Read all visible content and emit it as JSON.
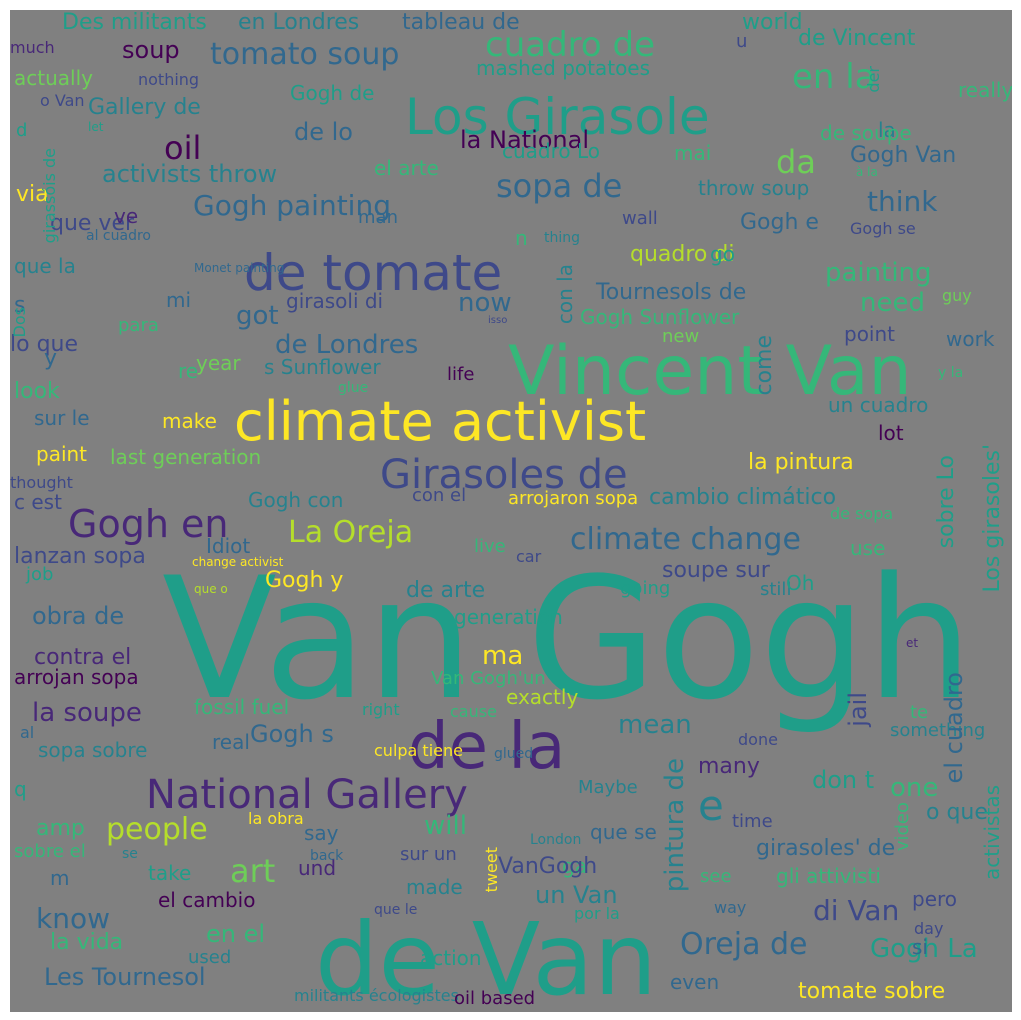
{
  "image": {
    "title": "",
    "background_color": "#808080",
    "palette": [
      "#440154",
      "#482878",
      "#3e4989",
      "#31688e",
      "#26828e",
      "#1f9e89",
      "#35b779",
      "#6ece58",
      "#b5de2b",
      "#fde725"
    ]
  },
  "words": [
    {
      "text": "Van Gogh",
      "color": "#1f9e89",
      "orient": "h"
    },
    {
      "text": "de Van",
      "color": "#1f9e89",
      "orient": "h"
    },
    {
      "text": "Vincent Van",
      "color": "#35b779",
      "orient": "h"
    },
    {
      "text": "climate activist",
      "color": "#fde725",
      "orient": "h"
    },
    {
      "text": "Los Girasole",
      "color": "#1f9e89",
      "orient": "h"
    },
    {
      "text": "de tomate",
      "color": "#3e4989",
      "orient": "h"
    },
    {
      "text": "Girasoles de",
      "color": "#3e4989",
      "orient": "h"
    },
    {
      "text": "de la",
      "color": "#482878",
      "orient": "h"
    },
    {
      "text": "National Gallery",
      "color": "#482878",
      "orient": "h"
    },
    {
      "text": "Gogh en",
      "color": "#482878",
      "orient": "h"
    },
    {
      "text": "La Oreja",
      "color": "#b5de2b",
      "orient": "h"
    },
    {
      "text": "climate change",
      "color": "#31688e",
      "orient": "h"
    },
    {
      "text": "cuadro de",
      "color": "#35b779",
      "orient": "h"
    },
    {
      "text": "tomato soup",
      "color": "#31688e",
      "orient": "h"
    },
    {
      "text": "sopa de",
      "color": "#31688e",
      "orient": "h"
    },
    {
      "text": "en la",
      "color": "#35b779",
      "orient": "h"
    },
    {
      "text": "people",
      "color": "#b5de2b",
      "orient": "h"
    },
    {
      "text": "Oreja de",
      "color": "#31688e",
      "orient": "h"
    },
    {
      "text": "Gogh painting",
      "color": "#31688e",
      "orient": "h"
    },
    {
      "text": "de Londres",
      "color": "#31688e",
      "orient": "h"
    },
    {
      "text": "think",
      "color": "#31688e",
      "orient": "h"
    },
    {
      "text": "painting",
      "color": "#35b779",
      "orient": "h"
    },
    {
      "text": "need",
      "color": "#35b779",
      "orient": "h"
    },
    {
      "text": "oil",
      "color": "#440154",
      "orient": "h"
    },
    {
      "text": "da",
      "color": "#6ece58",
      "orient": "h"
    },
    {
      "text": "Les Tournesol",
      "color": "#31688e",
      "orient": "h"
    },
    {
      "text": "di Van",
      "color": "#3e4989",
      "orient": "h"
    },
    {
      "text": "art",
      "color": "#6ece58",
      "orient": "h"
    },
    {
      "text": "know",
      "color": "#31688e",
      "orient": "h"
    },
    {
      "text": "soup",
      "color": "#440154",
      "orient": "h"
    },
    {
      "text": "de lo",
      "color": "#31688e",
      "orient": "h"
    },
    {
      "text": "la National",
      "color": "#440154",
      "orient": "h"
    },
    {
      "text": "activists throw",
      "color": "#26828e",
      "orient": "h"
    },
    {
      "text": "Gallery de",
      "color": "#26828e",
      "orient": "h"
    },
    {
      "text": "Gogh Van",
      "color": "#31688e",
      "orient": "h"
    },
    {
      "text": "la pintura",
      "color": "#fde725",
      "orient": "h"
    },
    {
      "text": "cambio climático",
      "color": "#26828e",
      "orient": "h"
    },
    {
      "text": "Tournesols de",
      "color": "#31688e",
      "orient": "h"
    },
    {
      "text": "Gogh e",
      "color": "#31688e",
      "orient": "h"
    },
    {
      "text": "Gogh y",
      "color": "#fde725",
      "orient": "h"
    },
    {
      "text": "Gogh s",
      "color": "#31688e",
      "orient": "h"
    },
    {
      "text": "un Van",
      "color": "#26828e",
      "orient": "h"
    },
    {
      "text": "one",
      "color": "#35b779",
      "orient": "h"
    },
    {
      "text": "ma",
      "color": "#fde725",
      "orient": "h"
    },
    {
      "text": "e",
      "color": "#26828e",
      "orient": "h"
    },
    {
      "text": "la soupe",
      "color": "#482878",
      "orient": "h"
    },
    {
      "text": "obra de",
      "color": "#31688e",
      "orient": "h"
    },
    {
      "text": "now",
      "color": "#31688e",
      "orient": "h"
    },
    {
      "text": "will",
      "color": "#35b779",
      "orient": "h"
    },
    {
      "text": "en el",
      "color": "#35b779",
      "orient": "h"
    },
    {
      "text": "girasoles' de",
      "color": "#31688e",
      "orient": "h"
    },
    {
      "text": "soupe sur",
      "color": "#3e4989",
      "orient": "h"
    },
    {
      "text": "de arte",
      "color": "#26828e",
      "orient": "h"
    },
    {
      "text": "tomate sobre",
      "color": "#fde725",
      "orient": "h"
    },
    {
      "text": "el cambio",
      "color": "#440154",
      "orient": "h"
    },
    {
      "text": "gli attivisti",
      "color": "#35b779",
      "orient": "h"
    },
    {
      "text": "Gogh Sunflower",
      "color": "#35b779",
      "orient": "h"
    },
    {
      "text": "s Sunflower",
      "color": "#26828e",
      "orient": "h"
    },
    {
      "text": "last generation",
      "color": "#6ece58",
      "orient": "h"
    },
    {
      "text": "lanzan sopa",
      "color": "#3e4989",
      "orient": "h"
    },
    {
      "text": "contra el",
      "color": "#482878",
      "orient": "h"
    },
    {
      "text": "arrojan sopa",
      "color": "#440154",
      "orient": "h"
    },
    {
      "text": "sopa sobre",
      "color": "#26828e",
      "orient": "h"
    },
    {
      "text": "fossil fuel",
      "color": "#35b779",
      "orient": "h"
    },
    {
      "text": "un cuadro",
      "color": "#26828e",
      "orient": "h"
    },
    {
      "text": "con el",
      "color": "#3e4989",
      "orient": "h"
    },
    {
      "text": "arrojaron sopa",
      "color": "#fde725",
      "orient": "h"
    },
    {
      "text": "Idiot",
      "color": "#31688e",
      "orient": "h"
    },
    {
      "text": "mashed potatoes",
      "color": "#1f9e89",
      "orient": "h"
    },
    {
      "text": "de Vincent",
      "color": "#1f9e89",
      "orient": "h"
    },
    {
      "text": "throw soup",
      "color": "#26828e",
      "orient": "h"
    },
    {
      "text": "cuadro Lo",
      "color": "#1f9e89",
      "orient": "h"
    },
    {
      "text": "el arte",
      "color": "#35b779",
      "orient": "h"
    },
    {
      "text": "la",
      "color": "#26828e",
      "orient": "h"
    },
    {
      "text": "really",
      "color": "#35b779",
      "orient": "h"
    },
    {
      "text": "mai",
      "color": "#35b779",
      "orient": "h"
    },
    {
      "text": "via",
      "color": "#fde725",
      "orient": "h"
    },
    {
      "text": "lo que",
      "color": "#3e4989",
      "orient": "h"
    },
    {
      "text": "y",
      "color": "#31688e",
      "orient": "h"
    },
    {
      "text": "got",
      "color": "#31688e",
      "orient": "h"
    },
    {
      "text": "s",
      "color": "#31688e",
      "orient": "h"
    },
    {
      "text": "que la",
      "color": "#26828e",
      "orient": "h"
    },
    {
      "text": "girasoli di",
      "color": "#3e4989",
      "orient": "h"
    },
    {
      "text": "que ver",
      "color": "#3e4989",
      "orient": "h"
    },
    {
      "text": "ve",
      "color": "#482878",
      "orient": "h"
    },
    {
      "text": "look",
      "color": "#35b779",
      "orient": "h"
    },
    {
      "text": "sur le",
      "color": "#31688e",
      "orient": "h"
    },
    {
      "text": "paint",
      "color": "#fde725",
      "orient": "h"
    },
    {
      "text": "make",
      "color": "#fde725",
      "orient": "h"
    },
    {
      "text": "year",
      "color": "#6ece58",
      "orient": "h"
    },
    {
      "text": "re",
      "color": "#35b779",
      "orient": "h"
    },
    {
      "text": "mi",
      "color": "#31688e",
      "orient": "h"
    },
    {
      "text": "para",
      "color": "#35b779",
      "orient": "h"
    },
    {
      "text": "quadro di",
      "color": "#b5de2b",
      "orient": "h"
    },
    {
      "text": "go",
      "color": "#1f9e89",
      "orient": "h"
    },
    {
      "text": "point",
      "color": "#3e4989",
      "orient": "h"
    },
    {
      "text": "work",
      "color": "#31688e",
      "orient": "h"
    },
    {
      "text": "lot",
      "color": "#440154",
      "orient": "h"
    },
    {
      "text": "use",
      "color": "#35b779",
      "orient": "h"
    },
    {
      "text": "life",
      "color": "#440154",
      "orient": "h"
    },
    {
      "text": "new",
      "color": "#6ece58",
      "orient": "h"
    },
    {
      "text": "live",
      "color": "#35b779",
      "orient": "h"
    },
    {
      "text": "car",
      "color": "#3e4989",
      "orient": "h"
    },
    {
      "text": "Gogh con",
      "color": "#26828e",
      "orient": "h"
    },
    {
      "text": "c est",
      "color": "#3e4989",
      "orient": "h"
    },
    {
      "text": "job",
      "color": "#1f9e89",
      "orient": "h"
    },
    {
      "text": "generation",
      "color": "#1f9e89",
      "orient": "h"
    },
    {
      "text": "going",
      "color": "#1f9e89",
      "orient": "h"
    },
    {
      "text": "still",
      "color": "#26828e",
      "orient": "h"
    },
    {
      "text": "Oh",
      "color": "#1f9e89",
      "orient": "h"
    },
    {
      "text": "de sopa",
      "color": "#35b779",
      "orient": "h"
    },
    {
      "text": "Van Gogh'un",
      "color": "#35b779",
      "orient": "h"
    },
    {
      "text": "exactly",
      "color": "#b5de2b",
      "orient": "h"
    },
    {
      "text": "mean",
      "color": "#26828e",
      "orient": "h"
    },
    {
      "text": "right",
      "color": "#1f9e89",
      "orient": "h"
    },
    {
      "text": "cause",
      "color": "#35b779",
      "orient": "h"
    },
    {
      "text": "real",
      "color": "#31688e",
      "orient": "h"
    },
    {
      "text": "al",
      "color": "#31688e",
      "orient": "h"
    },
    {
      "text": "culpa tiene",
      "color": "#fde725",
      "orient": "h"
    },
    {
      "text": "glued",
      "color": "#31688e",
      "orient": "h"
    },
    {
      "text": "done",
      "color": "#3e4989",
      "orient": "h"
    },
    {
      "text": "something",
      "color": "#26828e",
      "orient": "h"
    },
    {
      "text": "te",
      "color": "#35b779",
      "orient": "h"
    },
    {
      "text": "et",
      "color": "#482878",
      "orient": "h"
    },
    {
      "text": "many",
      "color": "#482878",
      "orient": "h"
    },
    {
      "text": "don t",
      "color": "#1f9e89",
      "orient": "h"
    },
    {
      "text": "q",
      "color": "#1f9e89",
      "orient": "h"
    },
    {
      "text": "Maybe",
      "color": "#26828e",
      "orient": "h"
    },
    {
      "text": "o que",
      "color": "#26828e",
      "orient": "h"
    },
    {
      "text": "amp",
      "color": "#35b779",
      "orient": "h"
    },
    {
      "text": "say",
      "color": "#31688e",
      "orient": "h"
    },
    {
      "text": "que se",
      "color": "#31688e",
      "orient": "h"
    },
    {
      "text": "time",
      "color": "#3e4989",
      "orient": "h"
    },
    {
      "text": "la obra",
      "color": "#fde725",
      "orient": "h"
    },
    {
      "text": "sobre el",
      "color": "#35b779",
      "orient": "h"
    },
    {
      "text": "se",
      "color": "#26828e",
      "orient": "h"
    },
    {
      "text": "back",
      "color": "#31688e",
      "orient": "h"
    },
    {
      "text": "sur un",
      "color": "#3e4989",
      "orient": "h"
    },
    {
      "text": "London",
      "color": "#26828e",
      "orient": "h"
    },
    {
      "text": "ga",
      "color": "#35b779",
      "orient": "h"
    },
    {
      "text": "VanGogh",
      "color": "#3e4989",
      "orient": "h"
    },
    {
      "text": "m",
      "color": "#31688e",
      "orient": "h"
    },
    {
      "text": "take",
      "color": "#1f9e89",
      "orient": "h"
    },
    {
      "text": "und",
      "color": "#482878",
      "orient": "h"
    },
    {
      "text": "made",
      "color": "#26828e",
      "orient": "h"
    },
    {
      "text": "see",
      "color": "#35b779",
      "orient": "h"
    },
    {
      "text": "pero",
      "color": "#3e4989",
      "orient": "h"
    },
    {
      "text": "way",
      "color": "#31688e",
      "orient": "h"
    },
    {
      "text": "la vida",
      "color": "#35b779",
      "orient": "h"
    },
    {
      "text": "que le",
      "color": "#3e4989",
      "orient": "h"
    },
    {
      "text": "por la",
      "color": "#1f9e89",
      "orient": "h"
    },
    {
      "text": "Gogh La",
      "color": "#1f9e89",
      "orient": "h"
    },
    {
      "text": "si",
      "color": "#31688e",
      "orient": "h"
    },
    {
      "text": "day",
      "color": "#3e4989",
      "orient": "h"
    },
    {
      "text": "used",
      "color": "#26828e",
      "orient": "h"
    },
    {
      "text": "action",
      "color": "#1f9e89",
      "orient": "h"
    },
    {
      "text": "even",
      "color": "#31688e",
      "orient": "h"
    },
    {
      "text": "ya",
      "color": "#482878",
      "orient": "h"
    },
    {
      "text": "militants écologistes",
      "color": "#26828e",
      "orient": "h"
    },
    {
      "text": "oil based",
      "color": "#440154",
      "orient": "h"
    },
    {
      "text": "Des militants",
      "color": "#1f9e89",
      "orient": "h"
    },
    {
      "text": "en Londres",
      "color": "#26828e",
      "orient": "h"
    },
    {
      "text": "tableau de",
      "color": "#31688e",
      "orient": "h"
    },
    {
      "text": "world",
      "color": "#1f9e89",
      "orient": "h"
    },
    {
      "text": "u",
      "color": "#3e4989",
      "orient": "h"
    },
    {
      "text": "much",
      "color": "#482878",
      "orient": "h"
    },
    {
      "text": "actually",
      "color": "#6ece58",
      "orient": "h"
    },
    {
      "text": "nothing",
      "color": "#3e4989",
      "orient": "h"
    },
    {
      "text": "Gogh de",
      "color": "#1f9e89",
      "orient": "h"
    },
    {
      "text": "o Van",
      "color": "#3e4989",
      "orient": "h"
    },
    {
      "text": "d",
      "color": "#1f9e89",
      "orient": "h"
    },
    {
      "text": "let",
      "color": "#1f9e89",
      "orient": "h"
    },
    {
      "text": "de soupe",
      "color": "#35b779",
      "orient": "h"
    },
    {
      "text": "à la",
      "color": "#35b779",
      "orient": "h"
    },
    {
      "text": "man",
      "color": "#31688e",
      "orient": "h"
    },
    {
      "text": "wall",
      "color": "#3e4989",
      "orient": "h"
    },
    {
      "text": "thing",
      "color": "#26828e",
      "orient": "h"
    },
    {
      "text": "Gogh se",
      "color": "#3e4989",
      "orient": "h"
    },
    {
      "text": "al cuadro",
      "color": "#31688e",
      "orient": "h"
    },
    {
      "text": "Monet painting",
      "color": "#31688e",
      "orient": "h"
    },
    {
      "text": "guy",
      "color": "#6ece58",
      "orient": "h"
    },
    {
      "text": "y la",
      "color": "#35b779",
      "orient": "h"
    },
    {
      "text": "glue",
      "color": "#35b779",
      "orient": "h"
    },
    {
      "text": "thought",
      "color": "#3e4989",
      "orient": "h"
    },
    {
      "text": "change activist",
      "color": "#fde725",
      "orient": "h"
    },
    {
      "text": "que o",
      "color": "#b5de2b",
      "orient": "h"
    },
    {
      "text": "isso",
      "color": "#3e4989",
      "orient": "h"
    },
    {
      "text": "n",
      "color": "#35b779",
      "orient": "h"
    },
    {
      "text": "con la",
      "color": "#26828e",
      "orient": "v"
    },
    {
      "text": "come",
      "color": "#26828e",
      "orient": "v"
    },
    {
      "text": "jail",
      "color": "#3e4989",
      "orient": "v"
    },
    {
      "text": "pintura de",
      "color": "#26828e",
      "orient": "v"
    },
    {
      "text": "el cuadro",
      "color": "#31688e",
      "orient": "v"
    },
    {
      "text": "sobre Lo",
      "color": "#1f9e89",
      "orient": "v"
    },
    {
      "text": "Los girasoles'",
      "color": "#1f9e89",
      "orient": "v"
    },
    {
      "text": "activistas",
      "color": "#1f9e89",
      "orient": "v"
    },
    {
      "text": "Dos",
      "color": "#1f9e89",
      "orient": "v"
    },
    {
      "text": "girassóis de",
      "color": "#1f9e89",
      "orient": "v"
    },
    {
      "text": "der",
      "color": "#1f9e89",
      "orient": "v"
    },
    {
      "text": "tweet",
      "color": "#fde725",
      "orient": "v"
    },
    {
      "text": "video",
      "color": "#35b779",
      "orient": "v"
    },
    {
      "text": "put",
      "color": "#482878",
      "orient": "v"
    }
  ]
}
